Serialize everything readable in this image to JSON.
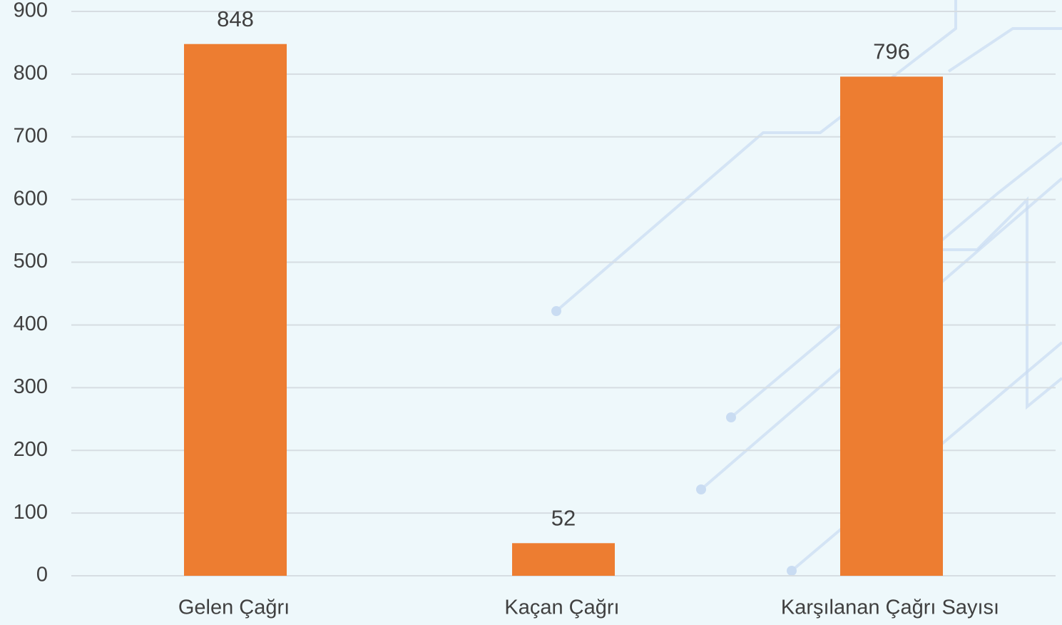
{
  "chart_data": {
    "type": "bar",
    "categories": [
      "Gelen Çağrı",
      "Kaçan Çağrı",
      "Karşılanan Çağrı Sayısı"
    ],
    "values": [
      848,
      52,
      796
    ],
    "color": "#ed7d31",
    "ylim": [
      0,
      900
    ],
    "yticks": [
      0,
      100,
      200,
      300,
      400,
      500,
      600,
      700,
      800,
      900
    ],
    "grid": true
  }
}
